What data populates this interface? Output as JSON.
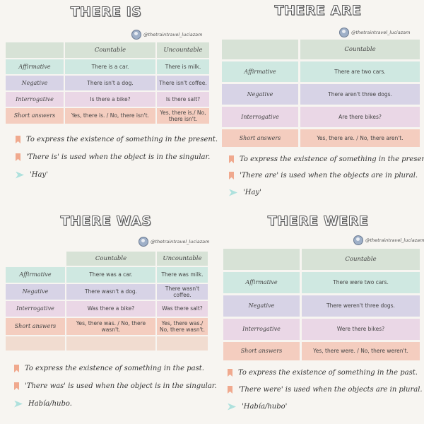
{
  "handle_text": "@thetraintravel_luciazam",
  "colors": {
    "header": "#d7e2d6",
    "affirmative": "#cfe8e1",
    "negative": "#d7d3e6",
    "interrogative": "#ead7e6",
    "short": "#f4cdbf",
    "bookmark": "#f0a98e",
    "arrow": "#aee1dd"
  },
  "icons": [
    "avatar-icon",
    "bookmark-icon",
    "arrow-icon"
  ],
  "q1": {
    "title": "THERE IS",
    "col_countable": "Countable",
    "col_uncountable": "Uncountable",
    "aff_label": "Affirmative",
    "neg_label": "Negative",
    "int_label": "Interrogative",
    "short_label": "Short answers",
    "aff_c": "There is a car.",
    "aff_u": "There is milk.",
    "neg_c": "There isn't a dog.",
    "neg_u": "There isn't coffee.",
    "int_c": "Is there a bike?",
    "int_u": "Is there salt?",
    "short_c": "Yes, there is. / No, there isn't.",
    "short_u": "Yes, there is./ No, there isn't.",
    "note1": "To express the existence of something in the present.",
    "note2": "'There is' is used when the object is in the singular.",
    "note3": "'Hay'"
  },
  "q2": {
    "title": "THERE ARE",
    "col_countable": "Countable",
    "aff_label": "Affirmative",
    "neg_label": "Negative",
    "int_label": "Interrogative",
    "short_label": "Short answers",
    "aff_c": "There are two cars.",
    "neg_c": "There aren't three dogs.",
    "int_c": "Are there bikes?",
    "short_c": "Yes, there are. / No, there aren't.",
    "note1": "To express the existence of something in the present.",
    "note2": "'There are' is used when the objects are in plural.",
    "note3": "'Hay'"
  },
  "q3": {
    "title": "THERE WAS",
    "col_countable": "Countable",
    "col_uncountable": "Uncountable",
    "aff_label": "Affirmative",
    "neg_label": "Negative",
    "int_label": "Interrogative",
    "short_label": "Short answers",
    "aff_c": "There was a car.",
    "aff_u": "There was milk.",
    "neg_c": "There wasn't a dog.",
    "neg_u": "There wasn't coffee.",
    "int_c": "Was there a bike?",
    "int_u": "Was there salt?",
    "short_c": "Yes, there was. / No, there wasn't.",
    "short_u": "Yes, there was./ No, there wasn't.",
    "note1": "To express the existence of something in the past.",
    "note2": "'There was' is used when the object is in the singular.",
    "note3": "Había/hubo."
  },
  "q4": {
    "title": "THERE WERE",
    "col_countable": "Countable",
    "aff_label": "Affirmative",
    "neg_label": "Negative",
    "int_label": "Interrogative",
    "short_label": "Short answers",
    "aff_c": "There were two cars.",
    "neg_c": "There weren't three dogs.",
    "int_c": "Were there bikes?",
    "short_c": "Yes, there were. / No, there weren't.",
    "note1": "To express the existence of something in the past.",
    "note2": "'There were' is used when the objects are in plural.",
    "note3": "'Había/hubo'"
  }
}
